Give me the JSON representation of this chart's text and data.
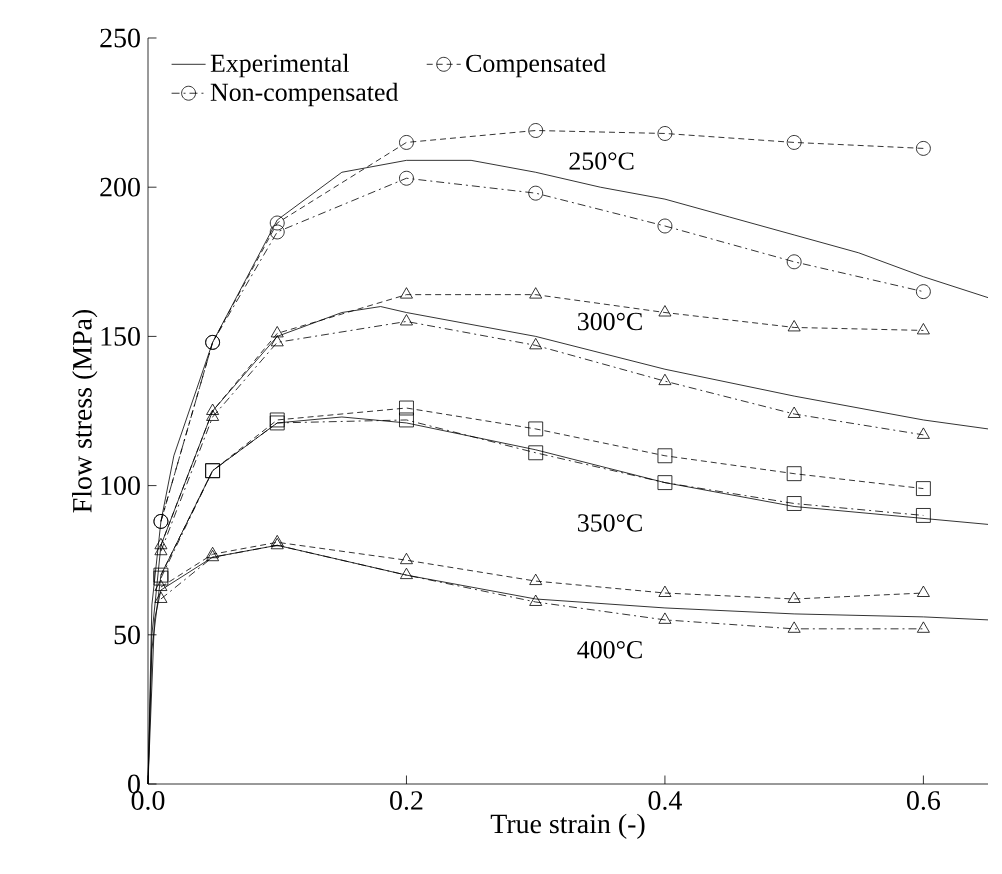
{
  "chart_data": {
    "type": "line",
    "xlabel": "True strain (-)",
    "ylabel": "Flow stress (MPa)",
    "xlim": [
      0,
      0.65
    ],
    "ylim": [
      0,
      250
    ],
    "xticks": [
      {
        "value": 0,
        "label": "0.0"
      },
      0.2,
      0.4,
      0.6
    ],
    "yticks": [
      0,
      50,
      100,
      150,
      200,
      250
    ],
    "legend": "top left",
    "grid": false,
    "series": [
      {
        "name": "Experimental",
        "color": "#000000",
        "line_style": "solid",
        "marker": "none",
        "x": [
          0,
          0.003,
          0.01,
          0.02,
          0.05,
          0.1,
          0.15,
          0.2,
          0.25,
          0.3,
          0.35,
          0.4,
          0.45,
          0.5,
          0.55,
          0.6,
          0.65
        ],
        "values": [
          0,
          60,
          88,
          110,
          148,
          189,
          205,
          209,
          209,
          205,
          200,
          196,
          190,
          184,
          178,
          170,
          163
        ]
      },
      {
        "name": "Compensated",
        "color": "#000000",
        "line_style": "dashed",
        "marker": "circle",
        "x": [
          0.01,
          0.05,
          0.1,
          0.2,
          0.3,
          0.4,
          0.5,
          0.6
        ],
        "values": [
          88,
          148,
          188,
          215,
          219,
          218,
          215,
          213
        ]
      },
      {
        "name": "Non-compensated",
        "color": "#000000",
        "line_style": "dashdot",
        "marker": "circle",
        "x": [
          0.01,
          0.05,
          0.1,
          0.2,
          0.3,
          0.4,
          0.5,
          0.6
        ],
        "values": [
          88,
          148,
          185,
          203,
          198,
          187,
          175,
          165
        ]
      },
      {
        "color": "#000000",
        "line_style": "solid",
        "marker": "none",
        "x": [
          0,
          0.003,
          0.01,
          0.05,
          0.1,
          0.15,
          0.18,
          0.2,
          0.3,
          0.4,
          0.5,
          0.6,
          0.65
        ],
        "values": [
          0,
          50,
          80,
          125,
          150,
          158,
          160,
          158,
          150,
          139,
          130,
          122,
          119
        ]
      },
      {
        "color": "#000000",
        "line_style": "dashed",
        "marker": "triangle",
        "x": [
          0.01,
          0.05,
          0.1,
          0.2,
          0.3,
          0.4,
          0.5,
          0.6
        ],
        "values": [
          80,
          125,
          151,
          164,
          164,
          158,
          153,
          152
        ]
      },
      {
        "color": "#000000",
        "line_style": "dashdot",
        "marker": "triangle",
        "x": [
          0.01,
          0.05,
          0.1,
          0.2,
          0.3,
          0.4,
          0.5,
          0.6
        ],
        "values": [
          78,
          123,
          148,
          155,
          147,
          135,
          124,
          117
        ]
      },
      {
        "color": "#000000",
        "line_style": "solid",
        "marker": "none",
        "x": [
          0,
          0.003,
          0.01,
          0.05,
          0.1,
          0.15,
          0.2,
          0.3,
          0.4,
          0.5,
          0.6,
          0.65
        ],
        "values": [
          0,
          45,
          70,
          105,
          121,
          123,
          121,
          112,
          101,
          93,
          89,
          87
        ]
      },
      {
        "color": "#000000",
        "line_style": "dashed",
        "marker": "square",
        "x": [
          0.01,
          0.05,
          0.1,
          0.2,
          0.3,
          0.4,
          0.5,
          0.6
        ],
        "values": [
          70,
          105,
          122,
          126,
          119,
          110,
          104,
          99
        ]
      },
      {
        "color": "#000000",
        "line_style": "dashdot",
        "marker": "square",
        "x": [
          0.01,
          0.05,
          0.1,
          0.2,
          0.3,
          0.4,
          0.5,
          0.6
        ],
        "values": [
          69,
          105,
          121,
          122,
          111,
          101,
          94,
          90
        ]
      },
      {
        "color": "#000000",
        "line_style": "solid",
        "marker": "none",
        "x": [
          0,
          0.005,
          0.01,
          0.05,
          0.1,
          0.2,
          0.3,
          0.4,
          0.5,
          0.6,
          0.65
        ],
        "values": [
          0,
          55,
          65,
          76,
          80,
          70,
          62,
          59,
          57,
          56,
          55
        ]
      },
      {
        "color": "#000000",
        "line_style": "dashed",
        "marker": "triangle",
        "x": [
          0.01,
          0.05,
          0.1,
          0.2,
          0.3,
          0.4,
          0.5,
          0.6
        ],
        "values": [
          66,
          77,
          81,
          75,
          68,
          64,
          62,
          64
        ]
      },
      {
        "color": "#000000",
        "line_style": "dashdot",
        "marker": "triangle",
        "x": [
          0.01,
          0.05,
          0.1,
          0.2,
          0.3,
          0.4,
          0.5,
          0.6
        ],
        "values": [
          62,
          76,
          80,
          70,
          61,
          55,
          52,
          52
        ]
      }
    ],
    "annotations": [
      "250°C",
      "300°C",
      "350°C",
      "400°C"
    ]
  }
}
